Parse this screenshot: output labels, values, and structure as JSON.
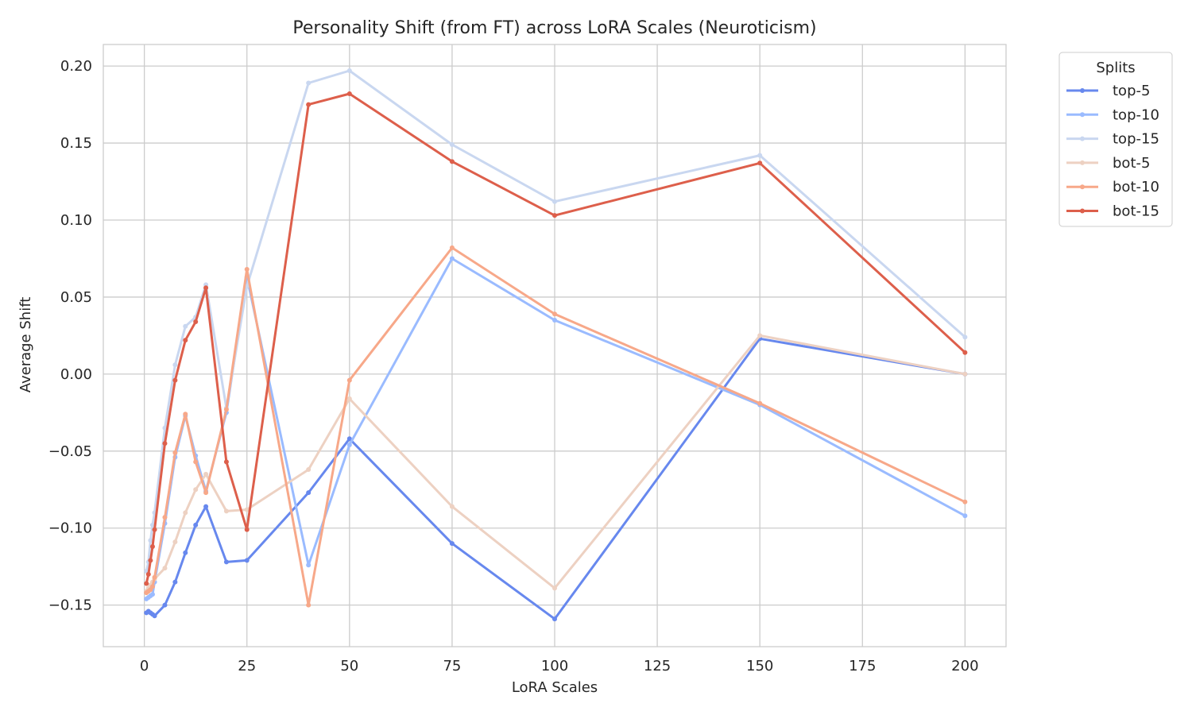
{
  "chart_data": {
    "type": "line",
    "title": "Personality Shift (from FT) across LoRA Scales (Neuroticism)",
    "xlabel": "LoRA Scales",
    "ylabel": "Average Shift",
    "xlim": [
      -10,
      210
    ],
    "ylim": [
      -0.177,
      0.214
    ],
    "xticks": [
      0,
      25,
      50,
      75,
      100,
      125,
      150,
      175,
      200
    ],
    "yticks": [
      -0.15,
      -0.1,
      -0.05,
      0.0,
      0.05,
      0.1,
      0.15,
      0.2
    ],
    "xtick_labels": [
      "0",
      "25",
      "50",
      "75",
      "100",
      "125",
      "150",
      "175",
      "200"
    ],
    "ytick_labels": [
      "−0.15",
      "−0.10",
      "−0.05",
      "0.00",
      "0.05",
      "0.10",
      "0.15",
      "0.20"
    ],
    "grid": true,
    "legend": {
      "title": "Splits",
      "placement": "outside-upper-right"
    },
    "series": [
      {
        "name": "top-5",
        "color": "#6788ee",
        "points": [
          [
            0.5,
            -0.155
          ],
          [
            1,
            -0.154
          ],
          [
            1.5,
            -0.155
          ],
          [
            2,
            -0.156
          ],
          [
            2.5,
            -0.157
          ],
          [
            5,
            -0.15
          ],
          [
            7.5,
            -0.135
          ],
          [
            10,
            -0.116
          ],
          [
            12.5,
            -0.098
          ],
          [
            15,
            -0.086
          ],
          [
            20,
            -0.122
          ],
          [
            25,
            -0.121
          ],
          [
            40,
            -0.077
          ],
          [
            50,
            -0.042
          ],
          [
            75,
            -0.11
          ],
          [
            100,
            -0.159
          ],
          [
            150,
            0.023
          ],
          [
            200,
            0.0
          ]
        ]
      },
      {
        "name": "top-10",
        "color": "#9abbff",
        "points": [
          [
            0.5,
            -0.146
          ],
          [
            1,
            -0.145
          ],
          [
            1.5,
            -0.144
          ],
          [
            2,
            -0.143
          ],
          [
            2.5,
            -0.135
          ],
          [
            5,
            -0.097
          ],
          [
            7.5,
            -0.054
          ],
          [
            10,
            -0.027
          ],
          [
            12.5,
            -0.053
          ],
          [
            15,
            -0.076
          ],
          [
            20,
            -0.025
          ],
          [
            25,
            0.063
          ],
          [
            40,
            -0.124
          ],
          [
            50,
            -0.046
          ],
          [
            75,
            0.075
          ],
          [
            100,
            0.035
          ],
          [
            150,
            -0.02
          ],
          [
            200,
            -0.092
          ]
        ]
      },
      {
        "name": "top-15",
        "color": "#c9d7f0",
        "points": [
          [
            0.5,
            -0.128
          ],
          [
            1,
            -0.122
          ],
          [
            1.5,
            -0.108
          ],
          [
            2,
            -0.098
          ],
          [
            2.5,
            -0.09
          ],
          [
            5,
            -0.035
          ],
          [
            7.5,
            0.006
          ],
          [
            10,
            0.031
          ],
          [
            12.5,
            0.037
          ],
          [
            15,
            0.058
          ],
          [
            20,
            -0.022
          ],
          [
            25,
            0.057
          ],
          [
            40,
            0.189
          ],
          [
            50,
            0.197
          ],
          [
            75,
            0.149
          ],
          [
            100,
            0.112
          ],
          [
            150,
            0.142
          ],
          [
            200,
            0.024
          ]
        ]
      },
      {
        "name": "bot-5",
        "color": "#edd1c2",
        "points": [
          [
            0.5,
            -0.141
          ],
          [
            1,
            -0.139
          ],
          [
            1.5,
            -0.137
          ],
          [
            2,
            -0.135
          ],
          [
            2.5,
            -0.133
          ],
          [
            5,
            -0.126
          ],
          [
            7.5,
            -0.109
          ],
          [
            10,
            -0.09
          ],
          [
            12.5,
            -0.075
          ],
          [
            15,
            -0.065
          ],
          [
            20,
            -0.089
          ],
          [
            25,
            -0.088
          ],
          [
            40,
            -0.062
          ],
          [
            50,
            -0.016
          ],
          [
            75,
            -0.086
          ],
          [
            100,
            -0.139
          ],
          [
            150,
            0.025
          ],
          [
            200,
            0.0
          ]
        ]
      },
      {
        "name": "bot-10",
        "color": "#f7a889",
        "points": [
          [
            0.5,
            -0.142
          ],
          [
            1,
            -0.141
          ],
          [
            1.5,
            -0.14
          ],
          [
            2,
            -0.138
          ],
          [
            2.5,
            -0.132
          ],
          [
            5,
            -0.093
          ],
          [
            7.5,
            -0.051
          ],
          [
            10,
            -0.026
          ],
          [
            12.5,
            -0.057
          ],
          [
            15,
            -0.077
          ],
          [
            20,
            -0.023
          ],
          [
            25,
            0.068
          ],
          [
            40,
            -0.15
          ],
          [
            50,
            -0.004
          ],
          [
            75,
            0.082
          ],
          [
            100,
            0.039
          ],
          [
            150,
            -0.019
          ],
          [
            200,
            -0.083
          ]
        ]
      },
      {
        "name": "bot-15",
        "color": "#dd5f4b",
        "points": [
          [
            0.5,
            -0.136
          ],
          [
            1,
            -0.13
          ],
          [
            1.5,
            -0.121
          ],
          [
            2,
            -0.112
          ],
          [
            2.5,
            -0.101
          ],
          [
            5,
            -0.045
          ],
          [
            7.5,
            -0.004
          ],
          [
            10,
            0.022
          ],
          [
            12.5,
            0.034
          ],
          [
            15,
            0.056
          ],
          [
            20,
            -0.057
          ],
          [
            25,
            -0.101
          ],
          [
            40,
            0.175
          ],
          [
            50,
            0.182
          ],
          [
            75,
            0.138
          ],
          [
            100,
            0.103
          ],
          [
            150,
            0.137
          ],
          [
            200,
            0.014
          ]
        ]
      }
    ]
  }
}
